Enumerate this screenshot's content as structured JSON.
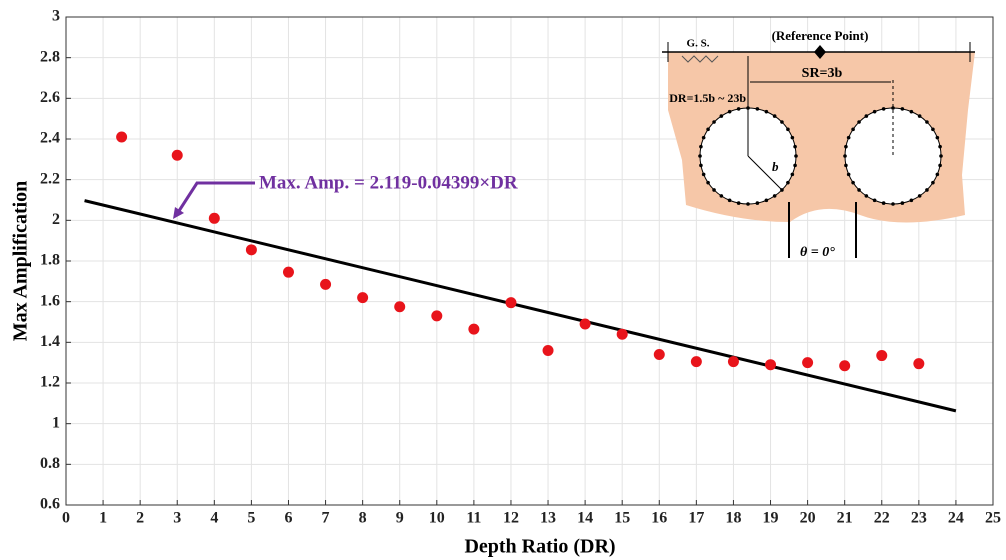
{
  "chart_data": {
    "type": "scatter",
    "x_label": "Depth Ratio (DR)",
    "y_label": "Max Amplification",
    "xlim": [
      0,
      25
    ],
    "ylim": [
      0.6,
      3
    ],
    "xticks": [
      0,
      1,
      2,
      3,
      4,
      5,
      6,
      7,
      8,
      9,
      10,
      11,
      12,
      13,
      14,
      15,
      16,
      17,
      18,
      19,
      20,
      21,
      22,
      23,
      24,
      25
    ],
    "yticks": [
      0.6,
      0.8,
      1,
      1.2,
      1.4,
      1.6,
      1.8,
      2,
      2.2,
      2.4,
      2.6,
      2.8,
      3
    ],
    "grid": true,
    "series": [
      {
        "type": "scatter",
        "color": "#e8141b",
        "x": [
          1.5,
          3,
          4,
          5,
          6,
          7,
          8,
          9,
          10,
          11,
          12,
          13,
          14,
          15,
          16,
          17,
          18,
          19,
          20,
          21,
          22,
          23
        ],
        "values": [
          2.41,
          2.32,
          2.01,
          1.855,
          1.745,
          1.685,
          1.62,
          1.575,
          1.53,
          1.465,
          1.595,
          1.36,
          1.49,
          1.44,
          1.34,
          1.305,
          1.305,
          1.29,
          1.3,
          1.285,
          1.335,
          1.295
        ]
      },
      {
        "type": "line",
        "color": "#000000",
        "x": [
          0.5,
          24
        ],
        "values": [
          2.097,
          1.063
        ]
      }
    ],
    "annotation": "Max. Amp. = 2.119-0.04399×DR",
    "diagram": {
      "reference": "(Reference Point)",
      "ground": "G. S.",
      "spacing": "SR=3b",
      "depth": "DR=1.5b ~ 23b",
      "radius": "b",
      "angle": "θ = 0°"
    }
  }
}
